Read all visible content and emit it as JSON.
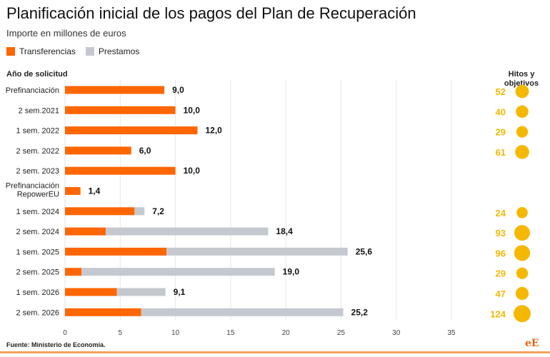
{
  "header": {
    "title": "Planificación inicial de los pagos del Plan de Recuperación",
    "subtitle": "Importe en millones de euros",
    "category_header": "Año de solicitud",
    "hitos_header_line1": "Hitos y",
    "hitos_header_line2": "objetivos"
  },
  "legend": {
    "transferencias": "Transferencias",
    "prestamos": "Prestamos"
  },
  "colors": {
    "transferencias": "#ff6600",
    "prestamos": "#c5c9cf",
    "hitos": "#f5b800",
    "grid": "#e6e6e6"
  },
  "footer": {
    "source": "Fuente: Ministerio de Economía.",
    "logo": "eE"
  },
  "chart_data": {
    "type": "bar",
    "orientation": "horizontal",
    "stacked": true,
    "categories": [
      "Prefinanciación",
      "2 sem.2021",
      "1 sem. 2022",
      "2 sem. 2022",
      "2 sem. 2023",
      "Prefinanciación RepowerEU",
      "1 sem. 2024",
      "2 sem. 2024",
      "1 sem. 2025",
      "2 sem. 2025",
      "1 sem. 2026",
      "2 sem. 2026"
    ],
    "series": [
      {
        "name": "Transferencias",
        "values": [
          9.0,
          10.0,
          12.0,
          6.0,
          10.0,
          1.4,
          6.3,
          3.7,
          9.2,
          1.5,
          4.7,
          6.9
        ]
      },
      {
        "name": "Prestamos",
        "values": [
          0,
          0,
          0,
          0,
          0,
          0,
          0.9,
          14.7,
          16.4,
          17.5,
          4.4,
          18.3
        ]
      }
    ],
    "totals": [
      "9,0",
      "10,0",
      "12,0",
      "6,0",
      "10,0",
      "1,4",
      "7,2",
      "18,4",
      "25,6",
      "19,0",
      "9,1",
      "25,2"
    ],
    "hitos": [
      "52",
      "40",
      "29",
      "61",
      "",
      "",
      "24",
      "93",
      "96",
      "29",
      "47",
      "124"
    ],
    "xlim": [
      0,
      35
    ],
    "xticks": [
      0,
      5,
      10,
      15,
      20,
      25,
      30,
      35
    ],
    "grid": true
  }
}
